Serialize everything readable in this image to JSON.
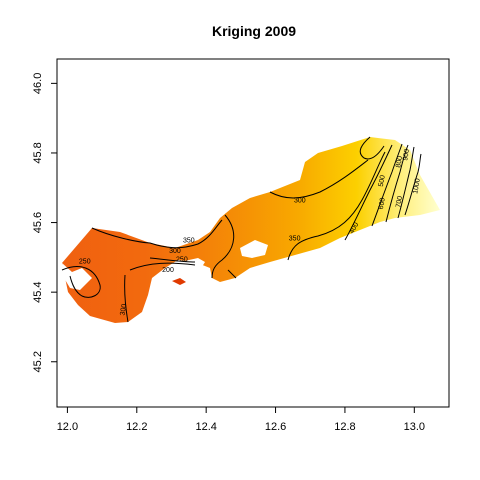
{
  "chart_data": {
    "type": "heatmap",
    "title": "Kriging 2009",
    "xlabel": "",
    "ylabel": "",
    "xlim": [
      11.97,
      13.1
    ],
    "ylim": [
      45.07,
      46.07
    ],
    "x_ticks": [
      {
        "value": 12.0,
        "label": "12.0"
      },
      {
        "value": 12.2,
        "label": "12.2"
      },
      {
        "value": 12.4,
        "label": "12.4"
      },
      {
        "value": 12.6,
        "label": "12.6"
      },
      {
        "value": 12.8,
        "label": "12.8"
      },
      {
        "value": 13.0,
        "label": "13.0"
      }
    ],
    "y_ticks": [
      {
        "value": 45.2,
        "label": "45.2"
      },
      {
        "value": 45.4,
        "label": "45.4"
      },
      {
        "value": 45.6,
        "label": "45.6"
      },
      {
        "value": 45.8,
        "label": "45.8"
      },
      {
        "value": 46.0,
        "label": "46.0"
      }
    ],
    "grid": false,
    "color_scale": {
      "low": "#e8400a",
      "mid": "#ffa500",
      "high": "#ffffc8"
    },
    "contour_labels": [
      {
        "text": "250",
        "x": 12.05,
        "y": 45.49,
        "angle": 0
      },
      {
        "text": "300",
        "x": 12.16,
        "y": 45.35,
        "angle": -80
      },
      {
        "text": "350",
        "x": 12.35,
        "y": 45.55,
        "angle": 0
      },
      {
        "text": "300",
        "x": 12.31,
        "y": 45.52,
        "angle": 0
      },
      {
        "text": "250",
        "x": 12.33,
        "y": 45.495,
        "angle": 0
      },
      {
        "text": "200",
        "x": 12.29,
        "y": 45.465,
        "angle": 0
      },
      {
        "text": "300",
        "x": 12.67,
        "y": 45.665,
        "angle": 0
      },
      {
        "text": "350",
        "x": 12.655,
        "y": 45.555,
        "angle": 0
      },
      {
        "text": "400",
        "x": 12.825,
        "y": 45.585,
        "angle": -60
      },
      {
        "text": "500",
        "x": 12.905,
        "y": 45.72,
        "angle": -80
      },
      {
        "text": "600",
        "x": 12.905,
        "y": 45.655,
        "angle": -80
      },
      {
        "text": "700",
        "x": 12.955,
        "y": 45.66,
        "angle": -80
      },
      {
        "text": "800",
        "x": 12.955,
        "y": 45.775,
        "angle": -80
      },
      {
        "text": "900",
        "x": 12.975,
        "y": 45.795,
        "angle": -80
      },
      {
        "text": "1000",
        "x": 13.005,
        "y": 45.705,
        "angle": -80
      }
    ]
  }
}
